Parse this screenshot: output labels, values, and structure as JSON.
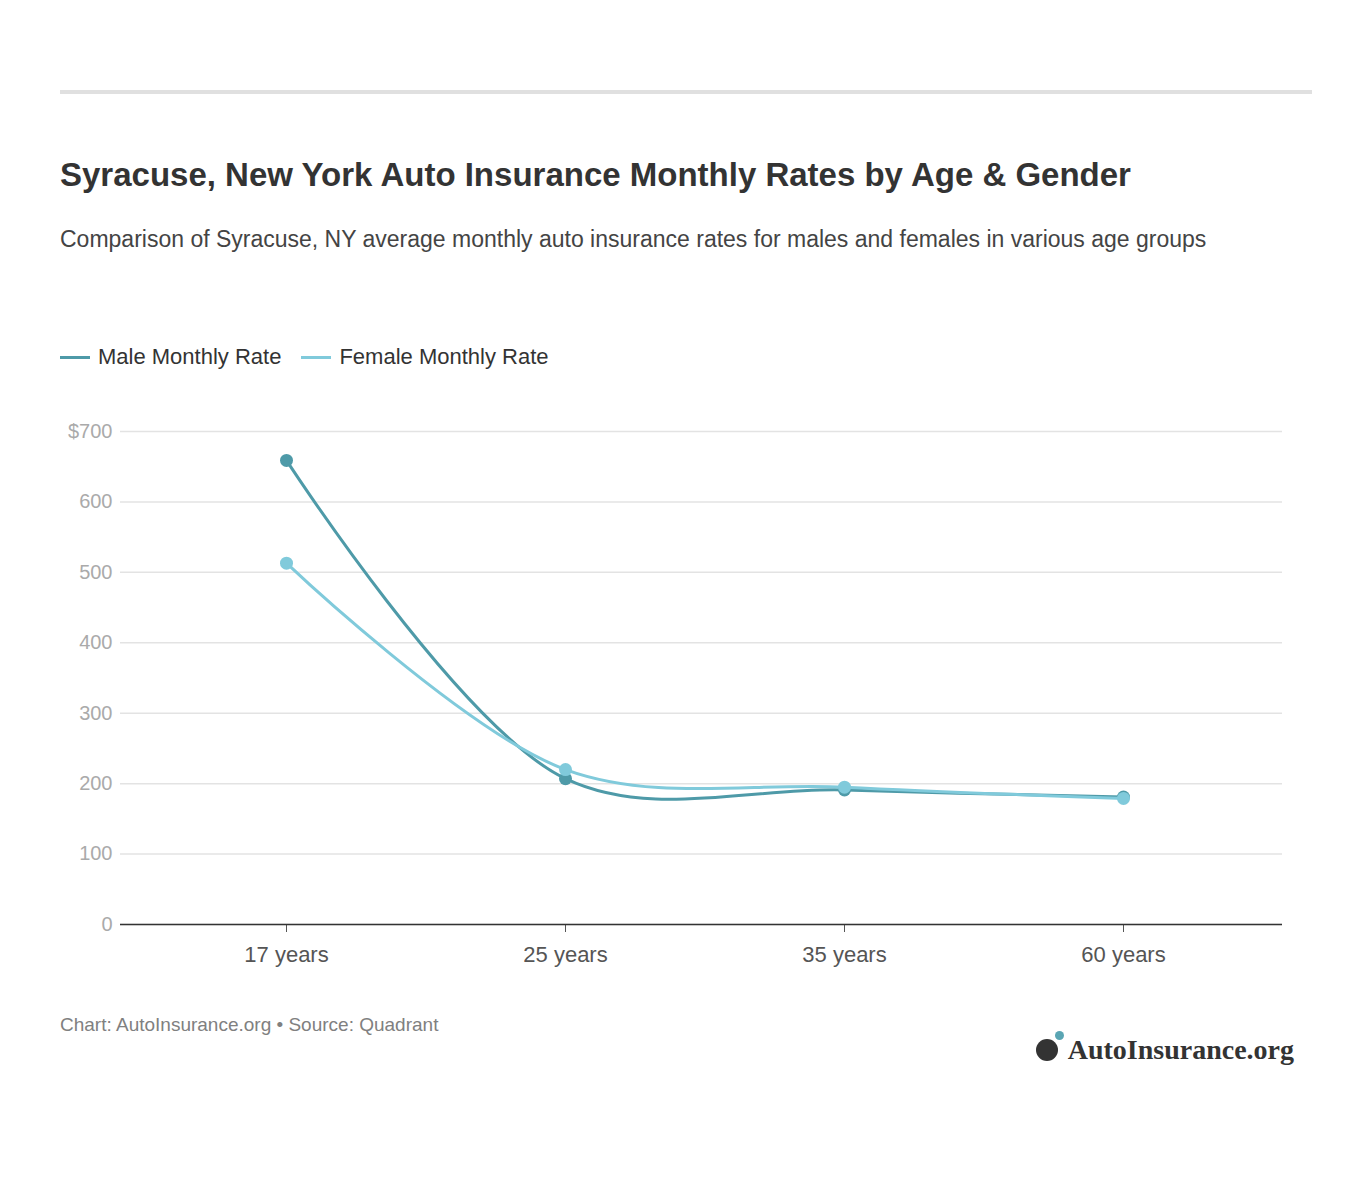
{
  "chart_data": {
    "type": "line",
    "title": "Syracuse, New York Auto Insurance Monthly Rates by Age & Gender",
    "subtitle": "Comparison of Syracuse, NY average monthly auto insurance rates for males and females in various age groups",
    "source": "Chart: AutoInsurance.org • Source: Quadrant",
    "logo": "AutoInsurance.org",
    "categories": [
      "17 years",
      "25 years",
      "35 years",
      "60 years"
    ],
    "series": [
      {
        "name": "Male Monthly Rate",
        "color": "#4e9aa8",
        "values": [
          659,
          207,
          191,
          181
        ]
      },
      {
        "name": "Female Monthly Rate",
        "color": "#80cadb",
        "values": [
          513,
          220,
          195,
          179
        ]
      }
    ],
    "ylim": [
      0,
      700
    ],
    "yticks": [
      0,
      100,
      200,
      300,
      400,
      500,
      600,
      {
        "value": 700,
        "label": "$700"
      }
    ],
    "grid": true,
    "legend": "top-left",
    "marker": "circle"
  }
}
